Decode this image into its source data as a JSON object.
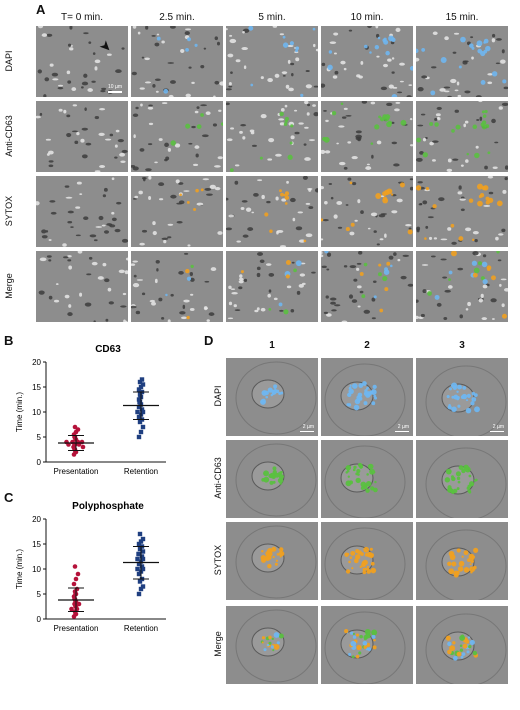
{
  "panel_a": {
    "letter": "A",
    "time_labels": [
      "T= 0 min.",
      "2.5 min.",
      "5 min.",
      "10 min.",
      "15 min."
    ],
    "row_labels": [
      "DAPI",
      "Anti-CD63",
      "SYTOX",
      "Merge"
    ],
    "scale_label": "10 µm"
  },
  "panel_b": {
    "letter": "B"
  },
  "panel_c": {
    "letter": "C"
  },
  "panel_d": {
    "letter": "D",
    "col_labels": [
      "1",
      "2",
      "3"
    ],
    "row_labels": [
      "DAPI",
      "Anti-CD63",
      "SYTOX",
      "Merge"
    ],
    "scale_label": "2 µm"
  },
  "colors": {
    "background": "#8d8d8d",
    "dapi": "#6fb6f0",
    "cd63": "#5ac040",
    "sytox": "#f0a020",
    "marker_b": "#b5123a",
    "marker_r": "#1f3f80"
  },
  "chart_data": [
    {
      "type": "scatter",
      "title": "CD63",
      "ylabel": "Time (min.)",
      "categories": [
        "Presentation",
        "Retention"
      ],
      "ylim": [
        0,
        20
      ],
      "yticks": [
        0,
        5,
        10,
        15,
        20
      ],
      "series": [
        {
          "category": "Presentation",
          "values": [
            1.5,
            2,
            2,
            2.5,
            2.5,
            3,
            3,
            3,
            3.5,
            3.5,
            3.5,
            3.5,
            4,
            4,
            4,
            4,
            4.5,
            4.5,
            5,
            5,
            5.5,
            6,
            6.5,
            7
          ],
          "mean": 3.8,
          "sd_range": [
            2.3,
            5.3
          ]
        },
        {
          "category": "Retention",
          "values": [
            5,
            6,
            7,
            8,
            8.5,
            9,
            9.5,
            10,
            10,
            10.5,
            11,
            11.5,
            11.5,
            12,
            12,
            12.5,
            13,
            13,
            13.5,
            14,
            14.5,
            15,
            15.5,
            16,
            16.5
          ],
          "mean": 11.3,
          "sd_range": [
            8.5,
            14.0
          ]
        }
      ]
    },
    {
      "type": "scatter",
      "title": "Polyphosphate",
      "ylabel": "Time (min.)",
      "categories": [
        "Presentation",
        "Retention"
      ],
      "ylim": [
        0,
        20
      ],
      "yticks": [
        0,
        5,
        10,
        15,
        20
      ],
      "series": [
        {
          "category": "Presentation",
          "values": [
            0.5,
            1,
            1,
            1.5,
            2,
            2,
            2.5,
            2.5,
            3,
            3,
            3,
            3.5,
            3.5,
            4,
            4,
            4.5,
            5,
            5,
            5.5,
            6,
            7,
            8,
            9,
            10.5
          ],
          "mean": 3.8,
          "sd_range": [
            1.5,
            6.2
          ]
        },
        {
          "category": "Retention",
          "values": [
            5,
            6,
            6.5,
            7.5,
            8,
            9,
            9.5,
            10,
            10,
            10.5,
            11,
            11.5,
            12,
            12,
            12.5,
            13,
            13,
            13.5,
            14,
            14.5,
            15,
            15.5,
            16,
            17
          ],
          "mean": 11.3,
          "sd_range": [
            8.0,
            14.5
          ]
        }
      ]
    }
  ]
}
